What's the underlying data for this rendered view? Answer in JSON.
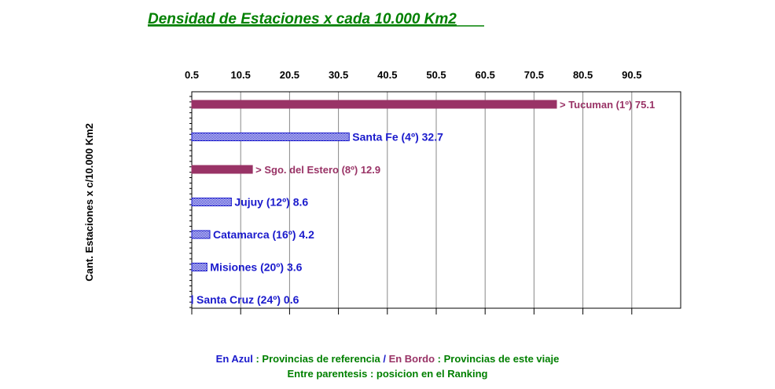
{
  "chart_data": {
    "type": "bar",
    "orientation": "horizontal",
    "title": "Densidad de Estaciones x cada 10.000 Km2",
    "ylabel": "Cant. Estaciones x c/10.000 Km2",
    "x_ticks": [
      "0.5",
      "10.5",
      "20.5",
      "30.5",
      "40.5",
      "50.5",
      "60.5",
      "70.5",
      "80.5",
      "90.5"
    ],
    "x_tick_values": [
      0.5,
      10.5,
      20.5,
      30.5,
      40.5,
      50.5,
      60.5,
      70.5,
      80.5,
      90.5
    ],
    "xlim": [
      0.5,
      100.5
    ],
    "grid": "vertical",
    "bars": [
      {
        "label": "> Tucuman (1º) 75.1",
        "value": 75.1,
        "group": "trip"
      },
      {
        "label": "Santa Fe (4º) 32.7",
        "value": 32.7,
        "group": "reference"
      },
      {
        "label": "> Sgo. del Estero (8º) 12.9",
        "value": 12.9,
        "group": "trip"
      },
      {
        "label": "Jujuy  (12º) 8.6",
        "value": 8.6,
        "group": "reference"
      },
      {
        "label": "Catamarca (16º) 4.2",
        "value": 4.2,
        "group": "reference"
      },
      {
        "label": "Misiones (20º) 3.6",
        "value": 3.6,
        "group": "reference"
      },
      {
        "label": "Santa Cruz (24º) 0.6",
        "value": 0.6,
        "group": "reference"
      }
    ],
    "colors": {
      "trip": "#993366",
      "reference": "#1a1acc",
      "grid": "#888888"
    }
  },
  "footer": {
    "line1": {
      "azul": "En Azul",
      "sep1": " : ",
      "ref": "Provincias de referencia",
      "slash": " / ",
      "bordo": "En Bordo",
      "sep2": " : ",
      "trip": "Provincias de este viaje"
    },
    "line2": "Entre parentesis : posicion en el Ranking"
  }
}
